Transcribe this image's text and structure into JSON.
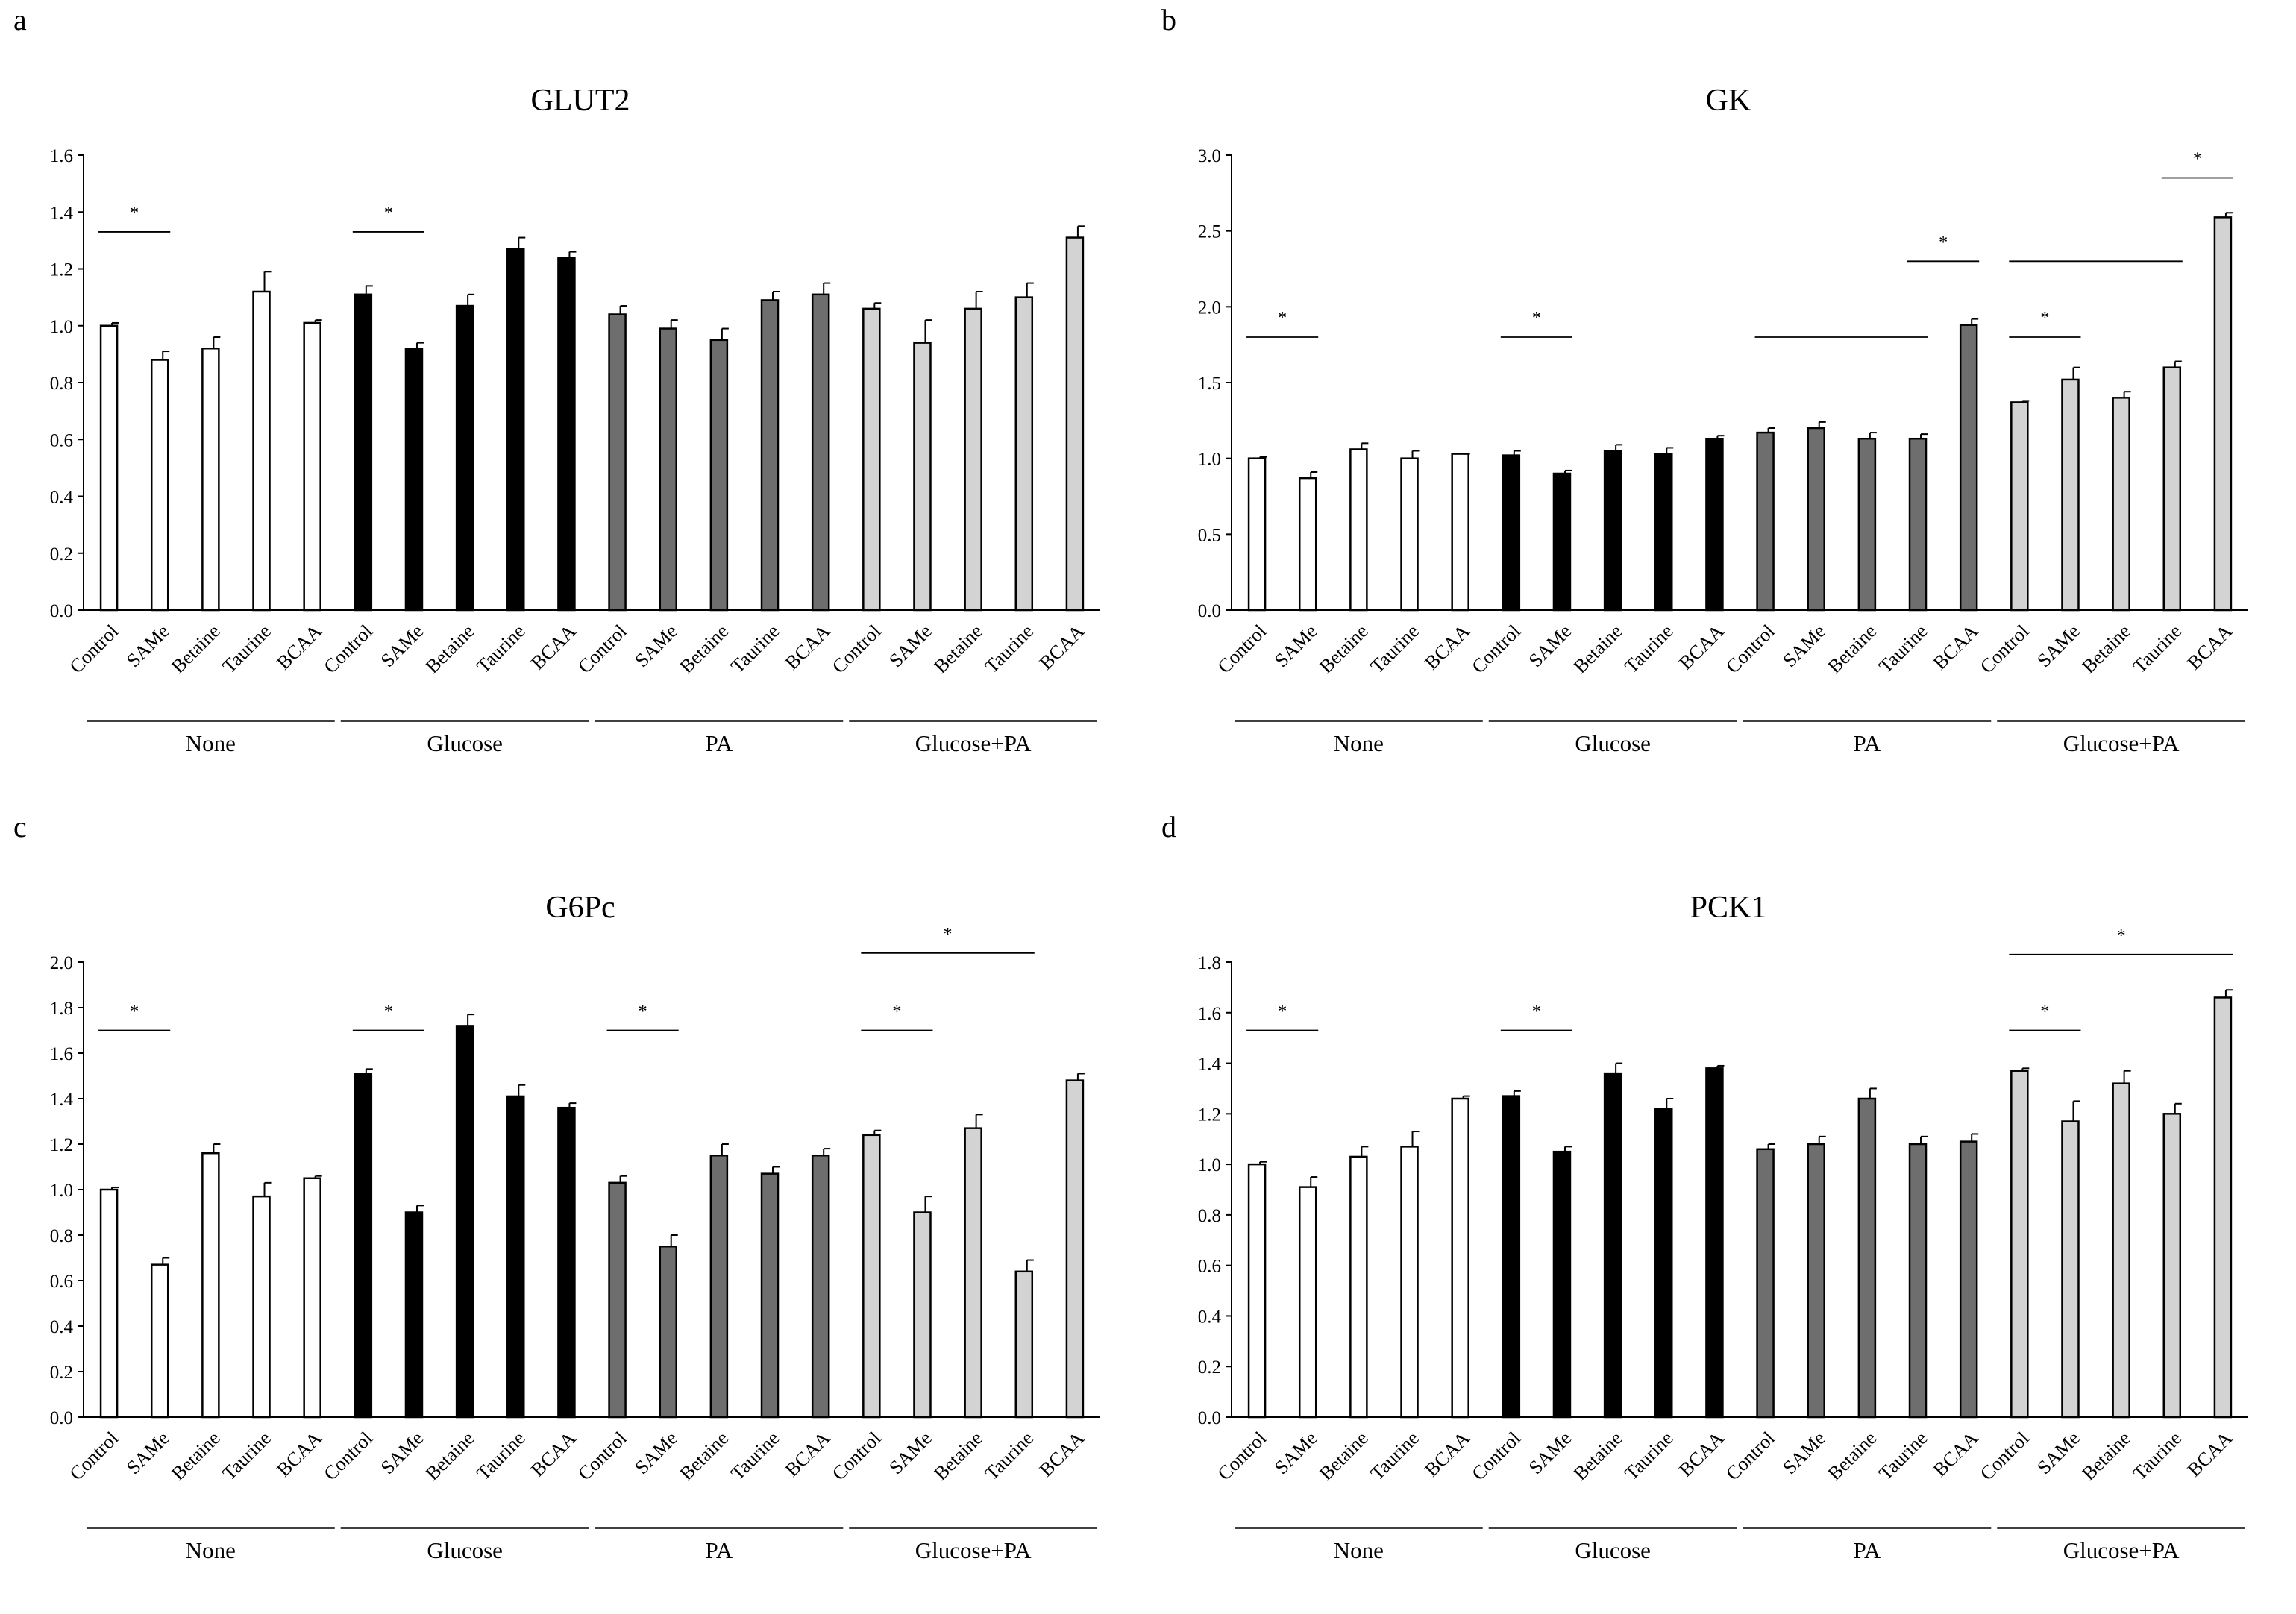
{
  "colors": {
    "None": "#ffffff",
    "Glucose": "#000000",
    "PA": "#6e6e6e",
    "Glucose+PA": "#d3d3d3",
    "stroke": "#000000",
    "sig_line": "#000000"
  },
  "chart_data": [
    {
      "panel_label": "a",
      "type": "bar",
      "title": "GLUT2",
      "ylim": [
        0,
        1.6
      ],
      "yticks": [
        "0.0",
        "0.2",
        "0.4",
        "0.6",
        "0.8",
        "1.0",
        "1.2",
        "1.4",
        "1.6"
      ],
      "categories": [
        "Control",
        "SAMe",
        "Betaine",
        "Taurine",
        "BCAA"
      ],
      "groups": [
        "None",
        "Glucose",
        "PA",
        "Glucose+PA"
      ],
      "series": [
        {
          "name": "None",
          "values": [
            1.0,
            0.88,
            0.92,
            1.12,
            1.01
          ],
          "errors": [
            0.01,
            0.03,
            0.04,
            0.07,
            0.01
          ]
        },
        {
          "name": "Glucose",
          "values": [
            1.11,
            0.92,
            1.07,
            1.27,
            1.24
          ],
          "errors": [
            0.03,
            0.02,
            0.04,
            0.04,
            0.02
          ]
        },
        {
          "name": "PA",
          "values": [
            1.04,
            0.99,
            0.95,
            1.09,
            1.11
          ],
          "errors": [
            0.03,
            0.03,
            0.04,
            0.03,
            0.04
          ]
        },
        {
          "name": "Glucose+PA",
          "values": [
            1.06,
            0.94,
            1.06,
            1.1,
            1.31
          ],
          "errors": [
            0.02,
            0.08,
            0.06,
            0.05,
            0.04
          ]
        }
      ],
      "significance": [
        {
          "group": 0,
          "from": 0,
          "to": 1,
          "y": 1.33,
          "label": "*"
        },
        {
          "group": 1,
          "from": 0,
          "to": 1,
          "y": 1.33,
          "label": "*"
        }
      ]
    },
    {
      "panel_label": "b",
      "type": "bar",
      "title": "GK",
      "ylim": [
        0,
        3.0
      ],
      "yticks": [
        "0.0",
        "0.5",
        "1.0",
        "1.5",
        "2.0",
        "2.5",
        "3.0"
      ],
      "categories": [
        "Control",
        "SAMe",
        "Betaine",
        "Taurine",
        "BCAA"
      ],
      "groups": [
        "None",
        "Glucose",
        "PA",
        "Glucose+PA"
      ],
      "series": [
        {
          "name": "None",
          "values": [
            1.0,
            0.87,
            1.06,
            1.0,
            1.03
          ],
          "errors": [
            0.01,
            0.04,
            0.04,
            0.05,
            0.0
          ]
        },
        {
          "name": "Glucose",
          "values": [
            1.02,
            0.9,
            1.05,
            1.03,
            1.13
          ],
          "errors": [
            0.03,
            0.02,
            0.04,
            0.04,
            0.02
          ]
        },
        {
          "name": "PA",
          "values": [
            1.17,
            1.2,
            1.13,
            1.13,
            1.88
          ],
          "errors": [
            0.03,
            0.04,
            0.04,
            0.03,
            0.04
          ]
        },
        {
          "name": "Glucose+PA",
          "values": [
            1.37,
            1.52,
            1.4,
            1.6,
            2.59
          ],
          "errors": [
            0.01,
            0.08,
            0.04,
            0.04,
            0.03
          ]
        }
      ],
      "significance": [
        {
          "group": 0,
          "from": 0,
          "to": 1,
          "y": 1.8,
          "label": "*"
        },
        {
          "group": 1,
          "from": 0,
          "to": 1,
          "y": 1.8,
          "label": "*"
        },
        {
          "group": 2,
          "from": 0,
          "to": 3,
          "y": 1.8,
          "label": ""
        },
        {
          "group": 2,
          "from": 3,
          "to": 4,
          "y": 2.3,
          "label": "*"
        },
        {
          "group": 3,
          "from": 0,
          "to": 3,
          "y": 2.3,
          "label": ""
        },
        {
          "group": 3,
          "from": 0,
          "to": 1,
          "y": 1.8,
          "label": "*"
        },
        {
          "group": 3,
          "from": 3,
          "to": 4,
          "y": 2.85,
          "label": "*"
        }
      ]
    },
    {
      "panel_label": "c",
      "type": "bar",
      "title": "G6Pc",
      "ylim": [
        0,
        2.0
      ],
      "yticks": [
        "0.0",
        "0.2",
        "0.4",
        "0.6",
        "0.8",
        "1.0",
        "1.2",
        "1.4",
        "1.6",
        "1.8",
        "2.0"
      ],
      "categories": [
        "Control",
        "SAMe",
        "Betaine",
        "Taurine",
        "BCAA"
      ],
      "groups": [
        "None",
        "Glucose",
        "PA",
        "Glucose+PA"
      ],
      "series": [
        {
          "name": "None",
          "values": [
            1.0,
            0.67,
            1.16,
            0.97,
            1.05
          ],
          "errors": [
            0.01,
            0.03,
            0.04,
            0.06,
            0.01
          ]
        },
        {
          "name": "Glucose",
          "values": [
            1.51,
            0.9,
            1.72,
            1.41,
            1.36
          ],
          "errors": [
            0.02,
            0.03,
            0.05,
            0.05,
            0.02
          ]
        },
        {
          "name": "PA",
          "values": [
            1.03,
            0.75,
            1.15,
            1.07,
            1.15
          ],
          "errors": [
            0.03,
            0.05,
            0.05,
            0.03,
            0.03
          ]
        },
        {
          "name": "Glucose+PA",
          "values": [
            1.24,
            0.9,
            1.27,
            0.64,
            1.48
          ],
          "errors": [
            0.02,
            0.07,
            0.06,
            0.05,
            0.03
          ]
        }
      ],
      "significance": [
        {
          "group": 0,
          "from": 0,
          "to": 1,
          "y": 1.7,
          "label": "*"
        },
        {
          "group": 1,
          "from": 0,
          "to": 1,
          "y": 1.7,
          "label": "*"
        },
        {
          "group": 2,
          "from": 0,
          "to": 1,
          "y": 1.7,
          "label": "*"
        },
        {
          "group": 3,
          "from": 0,
          "to": 1,
          "y": 1.7,
          "label": "*"
        },
        {
          "group": 3,
          "from": 0,
          "to": 3,
          "y": 2.04,
          "label": "*"
        }
      ]
    },
    {
      "panel_label": "d",
      "type": "bar",
      "title": "PCK1",
      "ylim": [
        0,
        1.8
      ],
      "yticks": [
        "0.0",
        "0.2",
        "0.4",
        "0.6",
        "0.8",
        "1.0",
        "1.2",
        "1.4",
        "1.6",
        "1.8"
      ],
      "categories": [
        "Control",
        "SAMe",
        "Betaine",
        "Taurine",
        "BCAA"
      ],
      "groups": [
        "None",
        "Glucose",
        "PA",
        "Glucose+PA"
      ],
      "series": [
        {
          "name": "None",
          "values": [
            1.0,
            0.91,
            1.03,
            1.07,
            1.26
          ],
          "errors": [
            0.01,
            0.04,
            0.04,
            0.06,
            0.01
          ]
        },
        {
          "name": "Glucose",
          "values": [
            1.27,
            1.05,
            1.36,
            1.22,
            1.38
          ],
          "errors": [
            0.02,
            0.02,
            0.04,
            0.04,
            0.01
          ]
        },
        {
          "name": "PA",
          "values": [
            1.06,
            1.08,
            1.26,
            1.08,
            1.09
          ],
          "errors": [
            0.02,
            0.03,
            0.04,
            0.03,
            0.03
          ]
        },
        {
          "name": "Glucose+PA",
          "values": [
            1.37,
            1.17,
            1.32,
            1.2,
            1.66
          ],
          "errors": [
            0.01,
            0.08,
            0.05,
            0.04,
            0.03
          ]
        }
      ],
      "significance": [
        {
          "group": 0,
          "from": 0,
          "to": 1,
          "y": 1.53,
          "label": "*"
        },
        {
          "group": 1,
          "from": 0,
          "to": 1,
          "y": 1.53,
          "label": "*"
        },
        {
          "group": 3,
          "from": 0,
          "to": 1,
          "y": 1.53,
          "label": "*"
        },
        {
          "group": 3,
          "from": 0,
          "to": 4,
          "y": 1.83,
          "label": "*"
        }
      ]
    }
  ]
}
